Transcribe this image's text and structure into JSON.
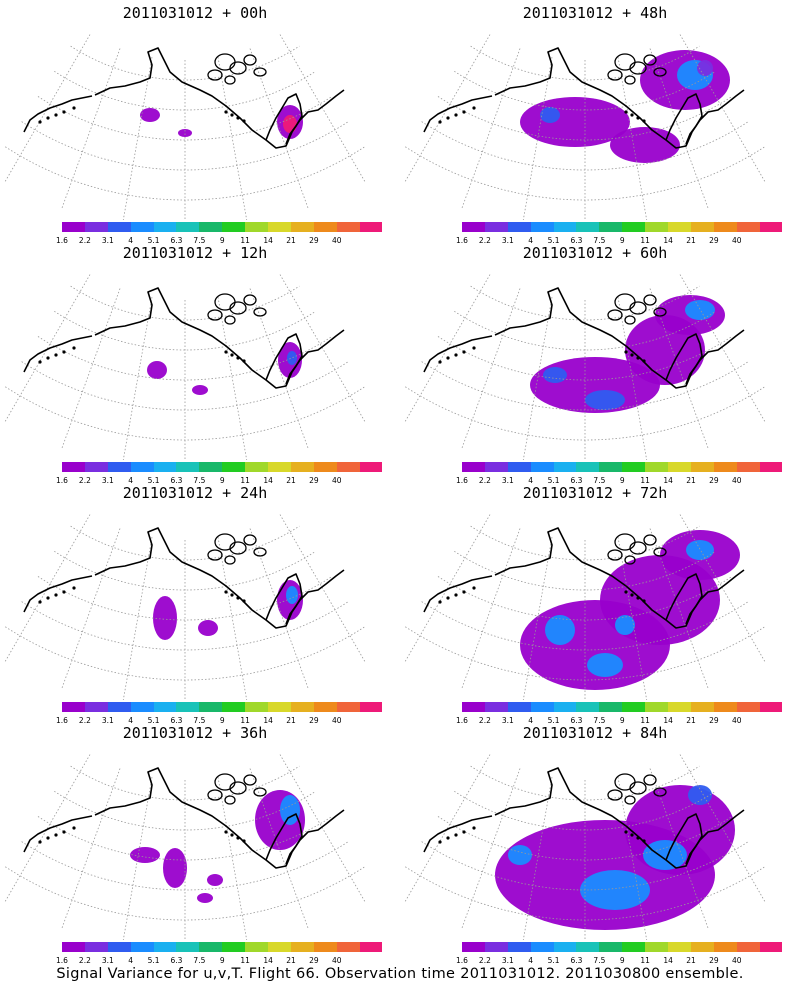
{
  "colorbar": {
    "labels": [
      "1.6",
      "2.2",
      "3.1",
      "4",
      "5.1",
      "6.3",
      "7.5",
      "9",
      "11",
      "14",
      "21",
      "29",
      "40"
    ],
    "colors": [
      "#9900cc",
      "#7a2ee0",
      "#2f5cf0",
      "#1a8cff",
      "#1ab0f0",
      "#19c2b8",
      "#19b86a",
      "#22cc22",
      "#a0d82a",
      "#d8d82a",
      "#e6b020",
      "#ee8a1c",
      "#f0643a",
      "#ee1a78"
    ]
  },
  "panels": [
    {
      "title": "2011031012 + 00h"
    },
    {
      "title": "2011031012 + 48h"
    },
    {
      "title": "2011031012 + 12h"
    },
    {
      "title": "2011031012 + 60h"
    },
    {
      "title": "2011031012 + 24h"
    },
    {
      "title": "2011031012 + 72h"
    },
    {
      "title": "2011031012 + 36h"
    },
    {
      "title": "2011031012 + 84h"
    }
  ],
  "caption": "Signal Variance for u,v,T. Flight 66. Observation time 2011031012. 2011030800 ensemble."
}
